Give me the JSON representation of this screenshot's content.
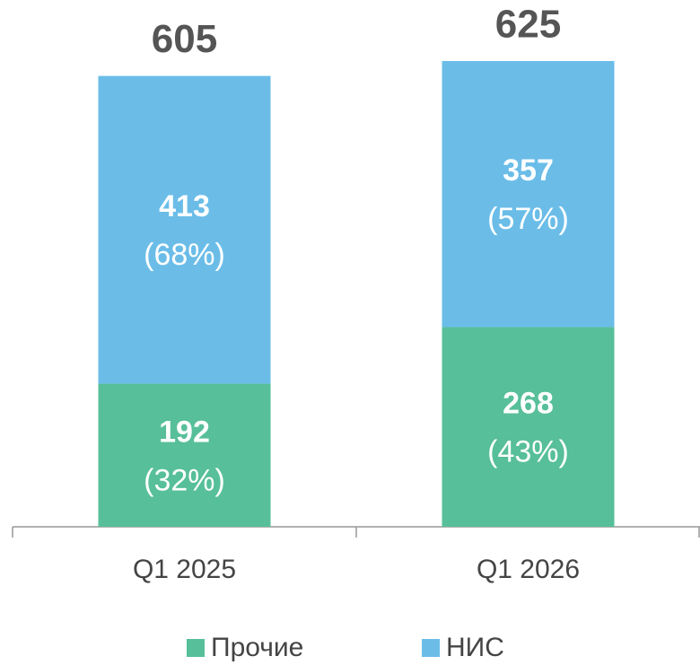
{
  "chart_data": {
    "type": "stacked_bar",
    "categories": [
      "Q1 2025",
      "Q1 2026"
    ],
    "totals": [
      605,
      625
    ],
    "series": [
      {
        "name": "Прочие",
        "color": "#57bf9a",
        "values": [
          192,
          268
        ],
        "shares": [
          32,
          43
        ],
        "share_labels": [
          "(32%)",
          "(43%)"
        ]
      },
      {
        "name": "НИС",
        "color": "#6bbde8",
        "values": [
          413,
          357
        ],
        "shares": [
          68,
          57
        ],
        "share_labels": [
          "(68%)",
          "(57%)"
        ]
      }
    ],
    "legend": "bottom"
  }
}
